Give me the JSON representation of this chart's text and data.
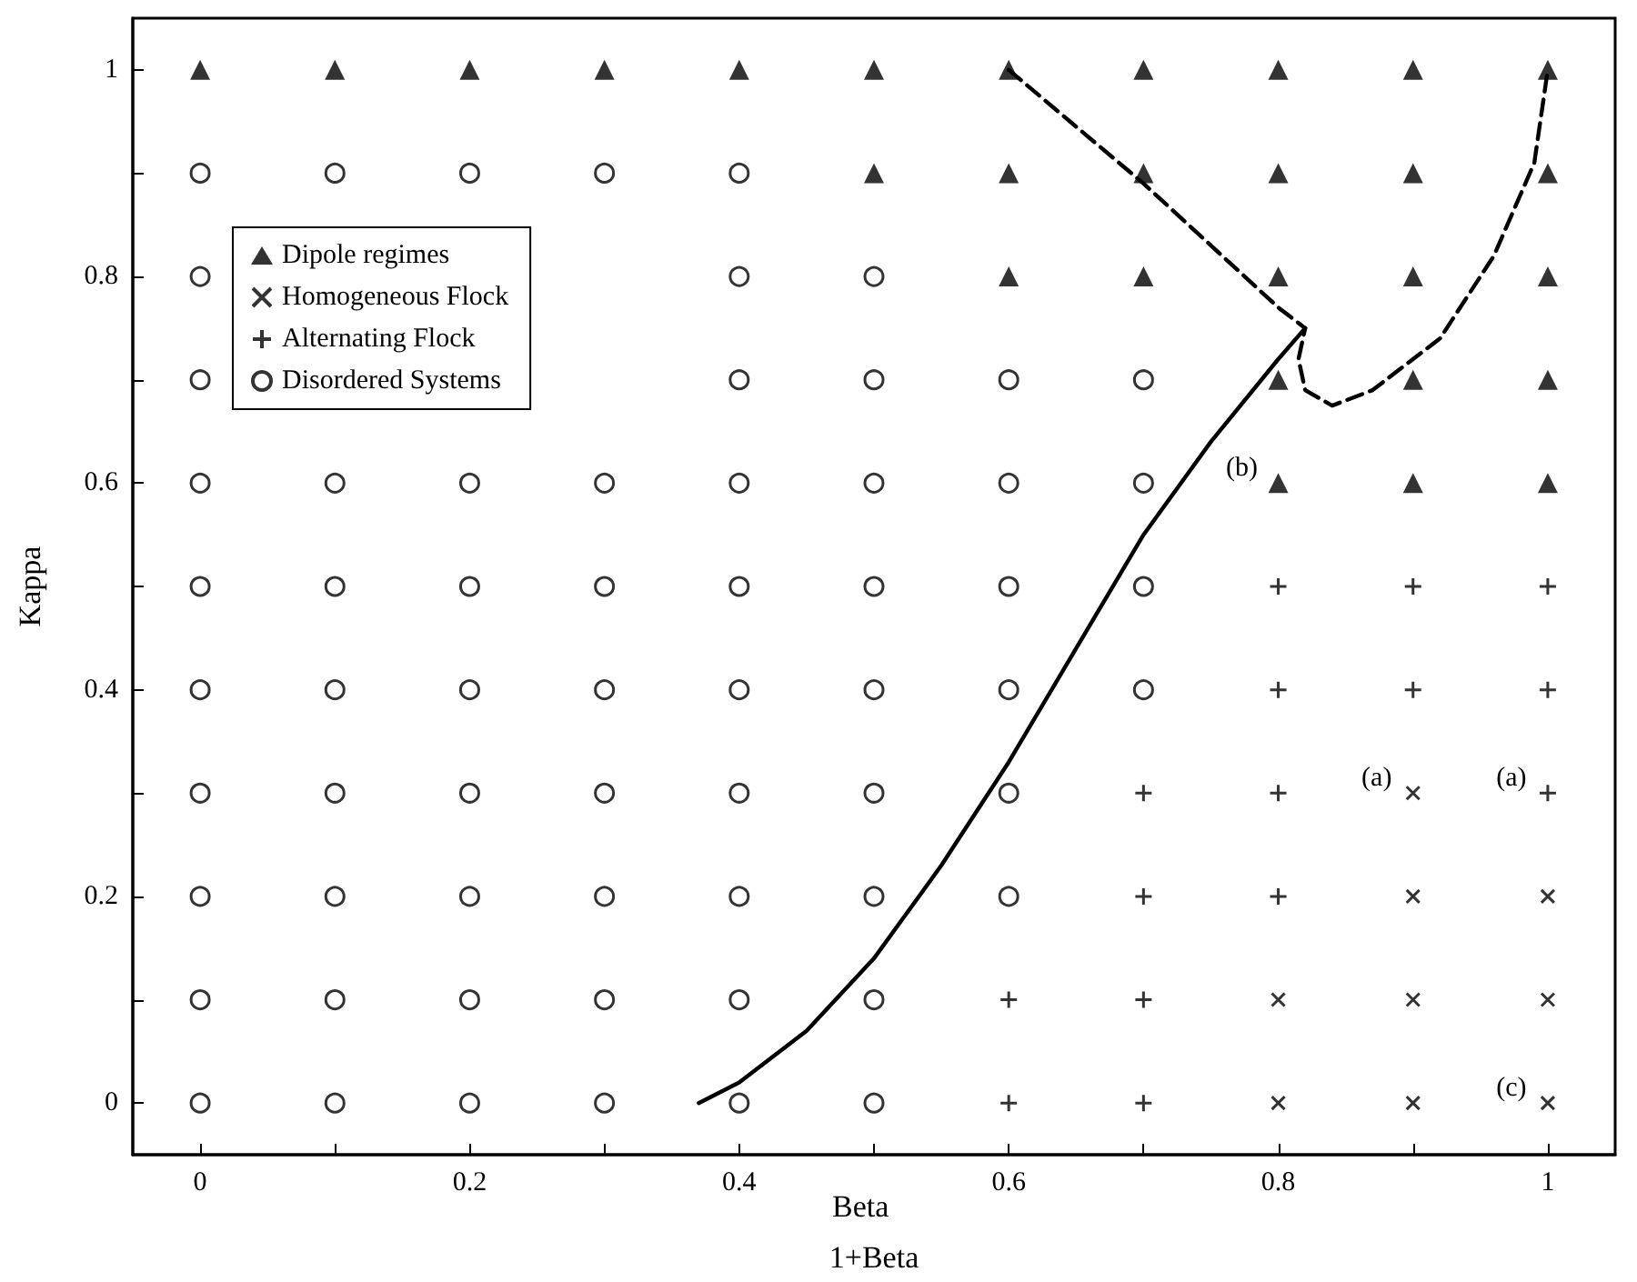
{
  "chart_data": {
    "type": "scatter",
    "xlabel": "1+Beta",
    "ylabel": "Kappa",
    "xlim": [
      -0.05,
      1.05
    ],
    "ylim": [
      -0.05,
      1.05
    ],
    "xticks": [
      0,
      {
        "value": 0.1,
        "label": null
      },
      0.2,
      {
        "value": 0.3,
        "label": null
      },
      0.4,
      {
        "value": 0.5,
        "label": null
      },
      0.6,
      {
        "value": 0.7,
        "label": null
      },
      0.8,
      {
        "value": 0.9,
        "label": null
      },
      1
    ],
    "yticks": [
      0,
      {
        "value": 0.1,
        "label": null
      },
      0.2,
      {
        "value": 0.3,
        "label": null
      },
      0.4,
      {
        "value": 0.5,
        "label": null
      },
      0.6,
      {
        "value": 0.7,
        "label": null
      },
      0.8,
      {
        "value": 0.9,
        "label": null
      },
      1
    ],
    "grid": false,
    "legend": "top left",
    "series": [
      {
        "name": "Dipole regimes",
        "color": "#000000",
        "marker": "triangle",
        "x": [
          0,
          0.1,
          0.2,
          0.3,
          0.4,
          0.5,
          0.6,
          0.7,
          0.8,
          0.9,
          1,
          0.5,
          0.6,
          0.7,
          0.8,
          0.9,
          1,
          0.6,
          0.7,
          0.8,
          0.9,
          1,
          0.8,
          0.9,
          1,
          0.8,
          0.9,
          1
        ],
        "values": [
          1,
          1,
          1,
          1,
          1,
          1,
          1,
          1,
          1,
          1,
          1,
          0.9,
          0.9,
          0.9,
          0.9,
          0.9,
          0.9,
          0.8,
          0.8,
          0.8,
          0.8,
          0.8,
          0.7,
          0.7,
          0.7,
          0.6,
          0.6,
          0.6
        ]
      },
      {
        "name": "Homogeneous Flock",
        "color": "#000000",
        "marker": "x",
        "x": [
          0.9,
          0.9,
          1,
          0.8,
          0.9,
          1,
          0.8,
          0.9,
          1
        ],
        "values": [
          0.3,
          0.2,
          0.2,
          0.1,
          0.1,
          0.1,
          0,
          0,
          0
        ]
      },
      {
        "name": "Alternating Flock",
        "color": "#000000",
        "marker": "cross",
        "x": [
          0.8,
          0.9,
          1,
          0.8,
          0.9,
          1,
          0.7,
          0.8,
          1,
          0.7,
          0.8,
          0.6,
          0.7,
          0.6,
          0.7
        ],
        "values": [
          0.5,
          0.5,
          0.5,
          0.4,
          0.4,
          0.4,
          0.3,
          0.3,
          0.3,
          0.2,
          0.2,
          0.1,
          0.1,
          0,
          0
        ]
      },
      {
        "name": "Disordered Systems",
        "color": "#000000",
        "marker": "circle",
        "x": [
          0,
          0.1,
          0.2,
          0.3,
          0.4,
          0,
          0.4,
          0.5,
          0,
          0.4,
          0.5,
          0.6,
          0.7,
          0,
          0.1,
          0.2,
          0.3,
          0.4,
          0.5,
          0.6,
          0.7,
          0,
          0.1,
          0.2,
          0.3,
          0.4,
          0.5,
          0.6,
          0.7,
          0,
          0.1,
          0.2,
          0.3,
          0.4,
          0.5,
          0.6,
          0.7,
          0,
          0.1,
          0.2,
          0.3,
          0.4,
          0.5,
          0.6,
          0,
          0.1,
          0.2,
          0.3,
          0.4,
          0.5,
          0.6,
          0,
          0.1,
          0.2,
          0.3,
          0.4,
          0.5,
          0,
          0.1,
          0.2,
          0.3,
          0.4,
          0.5
        ],
        "values": [
          0.9,
          0.9,
          0.9,
          0.9,
          0.9,
          0.8,
          0.8,
          0.8,
          0.7,
          0.7,
          0.7,
          0.7,
          0.7,
          0.6,
          0.6,
          0.6,
          0.6,
          0.6,
          0.6,
          0.6,
          0.6,
          0.5,
          0.5,
          0.5,
          0.5,
          0.5,
          0.5,
          0.5,
          0.5,
          0.4,
          0.4,
          0.4,
          0.4,
          0.4,
          0.4,
          0.4,
          0.4,
          0.3,
          0.3,
          0.3,
          0.3,
          0.3,
          0.3,
          0.3,
          0.2,
          0.2,
          0.2,
          0.2,
          0.2,
          0.2,
          0.2,
          0.1,
          0.1,
          0.1,
          0.1,
          0.1,
          0.1,
          0,
          0,
          0,
          0,
          0,
          0
        ]
      },
      {
        "type": "line",
        "color": "#000000",
        "marker": "none",
        "line_style": "solid",
        "x": [
          0.37,
          0.4,
          0.45,
          0.5,
          0.55,
          0.6,
          0.65,
          0.7,
          0.75,
          0.8,
          0.82
        ],
        "values": [
          0,
          0.02,
          0.07,
          0.14,
          0.23,
          0.33,
          0.44,
          0.55,
          0.64,
          0.72,
          0.75
        ]
      },
      {
        "type": "line",
        "color": "#000000",
        "marker": "none",
        "line_style": "dashed",
        "x": [
          0.6,
          0.7,
          0.8,
          0.82,
          0.815,
          0.82,
          0.84,
          0.87,
          0.92,
          0.96,
          0.99,
          1
        ],
        "values": [
          1,
          0.89,
          0.77,
          0.75,
          0.72,
          0.69,
          0.675,
          0.69,
          0.74,
          0.82,
          0.91,
          1
        ]
      }
    ],
    "annotations": [
      "Beta",
      {
        "text": "(a)",
        "x": 0.9,
        "y": 0.3
      },
      {
        "text": "(a)",
        "x": 1,
        "y": 0.3
      },
      {
        "text": "(b)",
        "x": 0.8,
        "y": 0.6
      },
      {
        "text": "(c)",
        "x": 1,
        "y": 0
      }
    ]
  }
}
